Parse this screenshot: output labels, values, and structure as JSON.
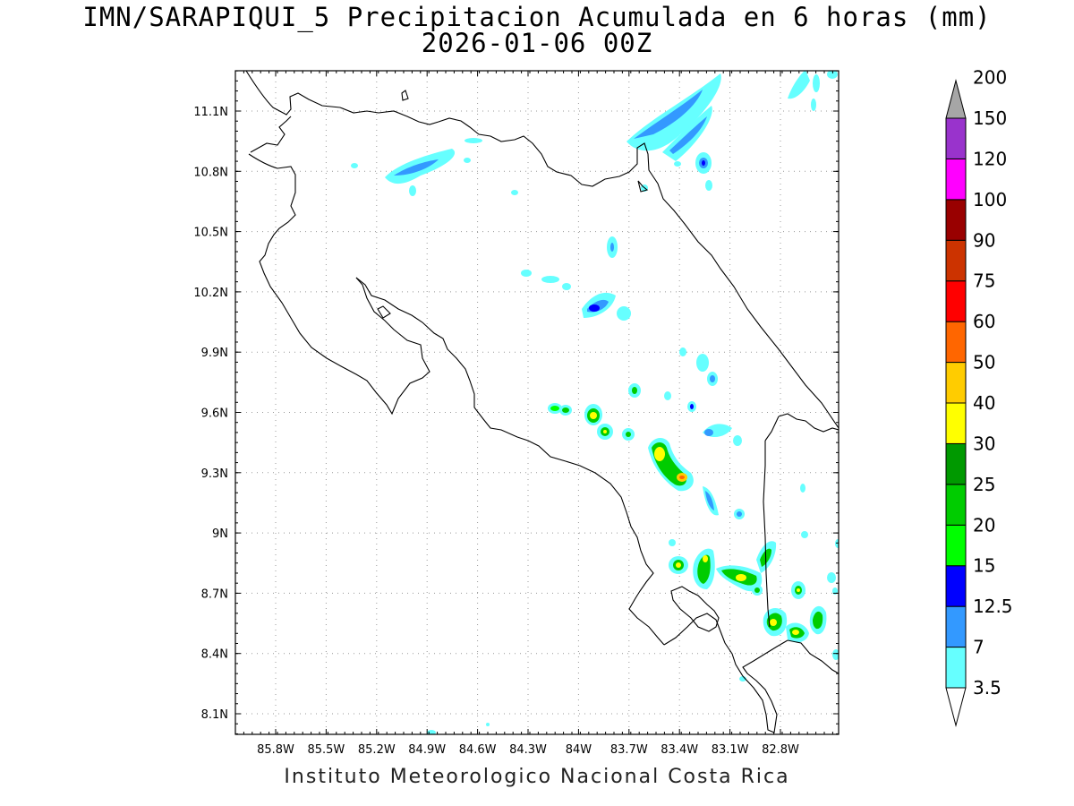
{
  "title": {
    "line1": "IMN/SARAPIQUI_5 Precipitacion Acumulada en 6 horas (mm)",
    "line2": "2026-01-06 00Z"
  },
  "credit": "Instituto Meteorologico Nacional Costa Rica",
  "axes": {
    "x_ticks": [
      "85.8W",
      "85.5W",
      "85.2W",
      "84.9W",
      "84.6W",
      "84.3W",
      "84W",
      "83.7W",
      "83.4W",
      "83.1W",
      "82.8W"
    ],
    "y_ticks": [
      "11.1N",
      "10.8N",
      "10.5N",
      "10.2N",
      "9.9N",
      "9.6N",
      "9.3N",
      "9N",
      "8.7N",
      "8.4N",
      "8.1N"
    ]
  },
  "legend": {
    "labels": [
      "3.5",
      "7",
      "12.5",
      "15",
      "20",
      "25",
      "30",
      "40",
      "50",
      "60",
      "75",
      "90",
      "100",
      "120",
      "150",
      "200"
    ],
    "colors": [
      "#66ffff",
      "#3399ff",
      "#0000ff",
      "#00ff00",
      "#00cc00",
      "#009900",
      "#ffff00",
      "#ffcc00",
      "#ff6600",
      "#ff0000",
      "#cc3300",
      "#990000",
      "#ff00ff",
      "#9933cc",
      "#f2f2f2",
      "#a6a6a6"
    ]
  }
}
